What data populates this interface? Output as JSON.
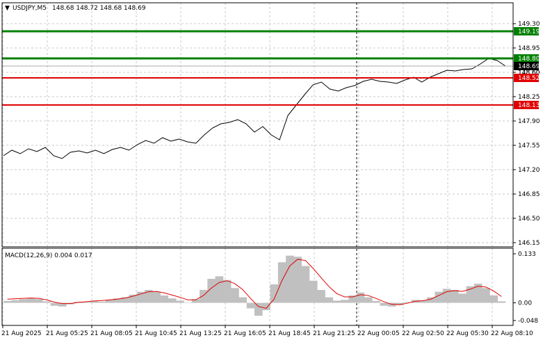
{
  "header": {
    "arrow": "▼",
    "symbol": "USDJPY,M5",
    "ohlc": "148.68 148.72 148.68 148.69"
  },
  "macd": {
    "label": "MACD(12,26,9) 0.004 0.017",
    "ticks": [
      "0.133",
      "0.00",
      "-0.048"
    ]
  },
  "chart_data": [
    {
      "type": "line",
      "title": "USDJPY,M5",
      "ylim": [
        146.15,
        149.3
      ],
      "y_ticks": [
        "149.30",
        "148.95",
        "148.60",
        "148.25",
        "147.90",
        "147.55",
        "147.20",
        "146.85",
        "146.50",
        "146.15"
      ],
      "x_ticks": [
        "21 Aug 2025",
        "21 Aug 05:25",
        "21 Aug 08:05",
        "21 Aug 10:45",
        "21 Aug 13:25",
        "21 Aug 16:05",
        "21 Aug 18:45",
        "21 Aug 21:25",
        "22 Aug 00:05",
        "22 Aug 02:50",
        "22 Aug 05:30",
        "22 Aug 08:10"
      ],
      "series": [
        {
          "values": [
            147.4,
            147.48,
            147.43,
            147.5,
            147.46,
            147.52,
            147.4,
            147.36,
            147.45,
            147.47,
            147.44,
            147.48,
            147.43,
            147.49,
            147.52,
            147.48,
            147.56,
            147.62,
            147.58,
            147.66,
            147.61,
            147.64,
            147.6,
            147.58,
            147.7,
            147.8,
            147.86,
            147.88,
            147.92,
            147.86,
            147.74,
            147.82,
            147.7,
            147.63,
            147.98,
            148.13,
            148.28,
            148.42,
            148.46,
            148.36,
            148.33,
            148.38,
            148.41,
            148.47,
            148.5,
            148.47,
            148.46,
            148.44,
            148.49,
            148.53,
            148.46,
            148.53,
            148.58,
            148.63,
            148.62,
            148.64,
            148.65,
            148.72,
            148.8,
            148.77,
            148.69
          ]
        }
      ],
      "levels": [
        {
          "value": 149.19,
          "label": "149.19",
          "color": "#008000"
        },
        {
          "value": 148.8,
          "label": "148.80",
          "color": "#008000"
        },
        {
          "value": 148.52,
          "label": "148.52",
          "color": "#e00000"
        },
        {
          "value": 148.13,
          "label": "148.13",
          "color": "#e00000"
        }
      ],
      "current": {
        "value": 148.69,
        "label": "148.69"
      },
      "hidden_tick": "148.60",
      "grid": true,
      "line_color": "#000000"
    },
    {
      "type": "bar",
      "title": "MACD(12,26,9)",
      "ylim": [
        -0.048,
        0.133
      ],
      "histogram": [
        0.005,
        0.007,
        0.01,
        0.012,
        0.01,
        0.004,
        -0.008,
        -0.01,
        -0.004,
        0.003,
        0.002,
        0.005,
        0.003,
        0.008,
        0.012,
        0.015,
        0.022,
        0.03,
        0.035,
        0.03,
        0.02,
        0.012,
        0.006,
        0.001,
        0.01,
        0.035,
        0.065,
        0.072,
        0.062,
        0.04,
        0.015,
        -0.015,
        -0.035,
        -0.02,
        0.05,
        0.11,
        0.128,
        0.125,
        0.1,
        0.06,
        0.035,
        0.015,
        0.006,
        0.008,
        0.02,
        0.028,
        0.015,
        0.005,
        -0.008,
        -0.01,
        -0.006,
        0.002,
        0.008,
        0.006,
        0.015,
        0.03,
        0.038,
        0.035,
        0.025,
        0.045,
        0.052,
        0.04,
        0.02,
        0.004
      ],
      "signal": [
        0.01,
        0.011,
        0.012,
        0.013,
        0.012,
        0.008,
        0.002,
        -0.002,
        -0.002,
        0.001,
        0.003,
        0.005,
        0.006,
        0.008,
        0.01,
        0.013,
        0.018,
        0.024,
        0.03,
        0.031,
        0.027,
        0.021,
        0.015,
        0.008,
        0.008,
        0.02,
        0.04,
        0.055,
        0.06,
        0.052,
        0.036,
        0.012,
        -0.01,
        -0.015,
        0.01,
        0.06,
        0.1,
        0.118,
        0.115,
        0.093,
        0.068,
        0.044,
        0.025,
        0.016,
        0.016,
        0.022,
        0.02,
        0.012,
        0.003,
        -0.004,
        -0.005,
        -0.001,
        0.004,
        0.006,
        0.01,
        0.02,
        0.03,
        0.033,
        0.031,
        0.037,
        0.045,
        0.043,
        0.032,
        0.017
      ],
      "hist_color": "#c0c0c0",
      "signal_color": "#e00000"
    }
  ]
}
